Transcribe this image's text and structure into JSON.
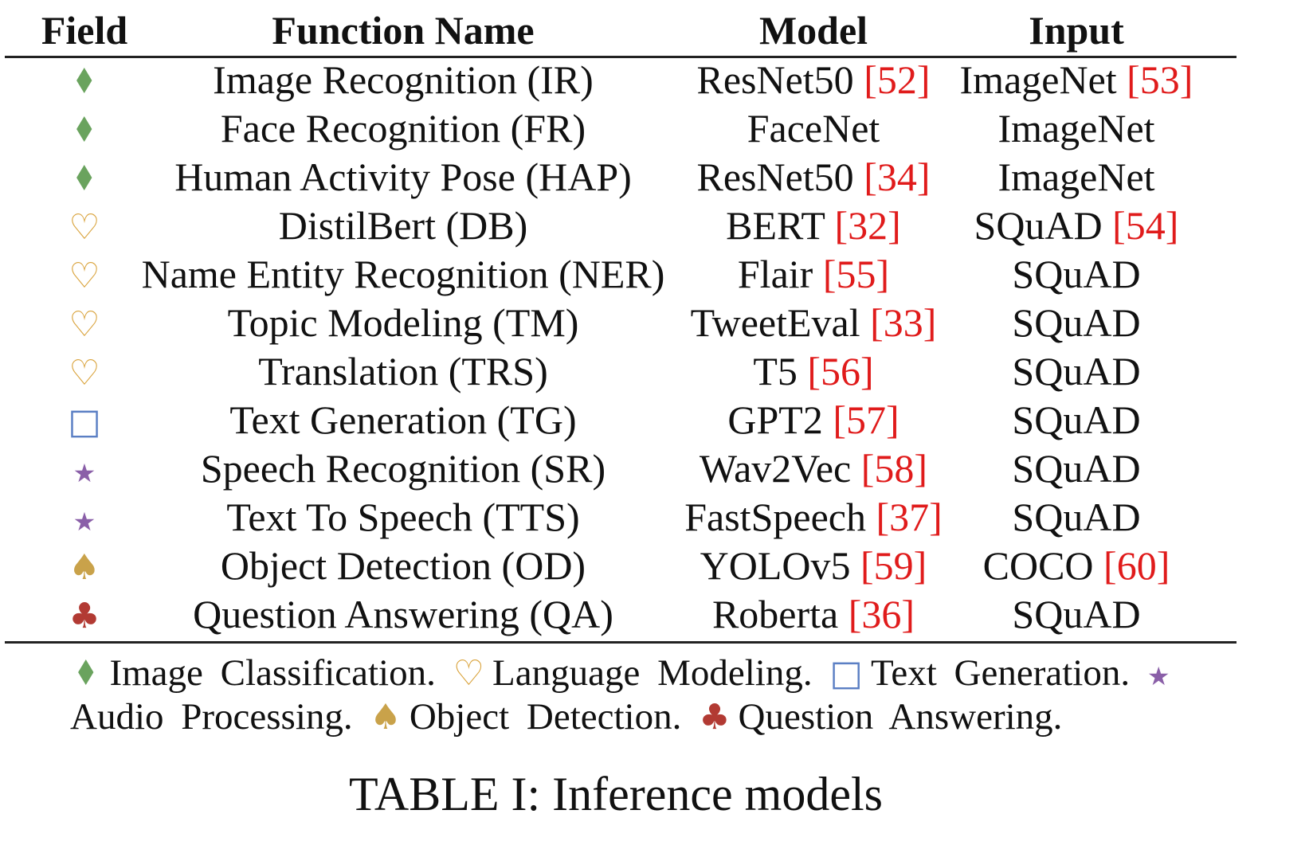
{
  "table": {
    "headers": {
      "field": "Field",
      "function_name": "Function Name",
      "model": "Model",
      "input": "Input"
    },
    "rows": [
      {
        "field_icon": "diamond-icon",
        "field_glyph": "♦",
        "function_name": "Image Recognition (IR)",
        "model_name": "ResNet50 ",
        "model_ref": "[52]",
        "input_name": "ImageNet ",
        "input_ref": "[53]"
      },
      {
        "field_icon": "diamond-icon",
        "field_glyph": "♦",
        "function_name": "Face Recognition (FR)",
        "model_name": "FaceNet",
        "model_ref": "",
        "input_name": "ImageNet",
        "input_ref": ""
      },
      {
        "field_icon": "diamond-icon",
        "field_glyph": "♦",
        "function_name": "Human Activity Pose (HAP)",
        "model_name": "ResNet50 ",
        "model_ref": "[34]",
        "input_name": "ImageNet",
        "input_ref": ""
      },
      {
        "field_icon": "heart-icon",
        "field_glyph": "♡",
        "function_name": "DistilBert (DB)",
        "model_name": "BERT ",
        "model_ref": "[32]",
        "input_name": "SQuAD ",
        "input_ref": "[54]"
      },
      {
        "field_icon": "heart-icon",
        "field_glyph": "♡",
        "function_name": "Name Entity Recognition (NER)",
        "model_name": "Flair ",
        "model_ref": "[55]",
        "input_name": "SQuAD",
        "input_ref": ""
      },
      {
        "field_icon": "heart-icon",
        "field_glyph": "♡",
        "function_name": "Topic Modeling (TM)",
        "model_name": "TweetEval ",
        "model_ref": "[33]",
        "input_name": "SQuAD",
        "input_ref": ""
      },
      {
        "field_icon": "heart-icon",
        "field_glyph": "♡",
        "function_name": "Translation (TRS)",
        "model_name": "T5 ",
        "model_ref": "[56]",
        "input_name": "SQuAD",
        "input_ref": ""
      },
      {
        "field_icon": "square-icon",
        "field_glyph": "□",
        "function_name": "Text Generation (TG)",
        "model_name": "GPT2 ",
        "model_ref": "[57]",
        "input_name": "SQuAD",
        "input_ref": ""
      },
      {
        "field_icon": "star-icon",
        "field_glyph": "★",
        "function_name": "Speech Recognition (SR)",
        "model_name": "Wav2Vec ",
        "model_ref": "[58]",
        "input_name": "SQuAD",
        "input_ref": ""
      },
      {
        "field_icon": "star-icon",
        "field_glyph": "★",
        "function_name": "Text To Speech (TTS)",
        "model_name": "FastSpeech ",
        "model_ref": "[37]",
        "input_name": "SQuAD",
        "input_ref": ""
      },
      {
        "field_icon": "spade-icon",
        "field_glyph": "♠",
        "function_name": "Object Detection (OD)",
        "model_name": "YOLOv5 ",
        "model_ref": "[59]",
        "input_name": "COCO ",
        "input_ref": "[60]"
      },
      {
        "field_icon": "club-icon",
        "field_glyph": "♣",
        "function_name": "Question Answering (QA)",
        "model_name": "Roberta ",
        "model_ref": "[36]",
        "input_name": "SQuAD",
        "input_ref": ""
      }
    ]
  },
  "legend": {
    "diamond_glyph": "♦",
    "diamond_label": "Image Classification.",
    "heart_glyph": "♡",
    "heart_label": "Language Modeling.",
    "square_glyph": "□",
    "square_label": "Text Generation.",
    "star_glyph": "★",
    "star_label": "Audio Processing.",
    "spade_glyph": "♠",
    "spade_label": "Object Detection.",
    "club_glyph": "♣",
    "club_label": "Question Answering."
  },
  "caption": "TABLE I: Inference models",
  "colors": {
    "diamond": "#6aa35e",
    "heart": "#d9a23a",
    "square": "#5b7fc4",
    "star": "#8a5fa8",
    "spade": "#c9a24a",
    "club": "#b23a33",
    "citation": "#e01b1b"
  }
}
